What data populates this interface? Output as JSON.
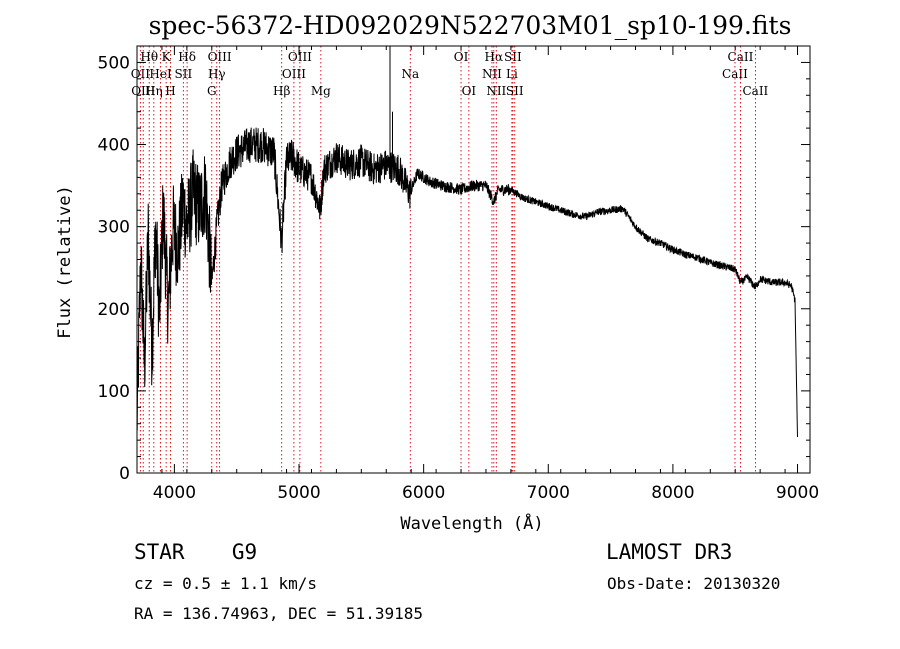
{
  "chart_data": {
    "type": "line",
    "title": "spec-56372-HD092029N522703M01_sp10-199.fits",
    "xlabel": "Wavelength (Å)",
    "ylabel": "Flux (relative)",
    "xlim": [
      3700,
      9100
    ],
    "ylim": [
      0,
      520
    ],
    "xticks": [
      4000,
      5000,
      6000,
      7000,
      8000,
      9000
    ],
    "yticks": [
      0,
      100,
      200,
      300,
      400,
      500
    ],
    "spectrum_anchors": [
      [
        3700,
        60
      ],
      [
        3730,
        260
      ],
      [
        3760,
        130
      ],
      [
        3790,
        290
      ],
      [
        3820,
        150
      ],
      [
        3850,
        300
      ],
      [
        3880,
        190
      ],
      [
        3910,
        320
      ],
      [
        3950,
        200
      ],
      [
        3990,
        300
      ],
      [
        4030,
        270
      ],
      [
        4070,
        330
      ],
      [
        4100,
        300
      ],
      [
        4150,
        340
      ],
      [
        4200,
        320
      ],
      [
        4250,
        345
      ],
      [
        4300,
        230
      ],
      [
        4340,
        300
      ],
      [
        4380,
        350
      ],
      [
        4450,
        380
      ],
      [
        4500,
        390
      ],
      [
        4600,
        400
      ],
      [
        4700,
        400
      ],
      [
        4800,
        390
      ],
      [
        4860,
        280
      ],
      [
        4900,
        380
      ],
      [
        4950,
        385
      ],
      [
        5000,
        370
      ],
      [
        5100,
        360
      ],
      [
        5170,
        320
      ],
      [
        5200,
        370
      ],
      [
        5300,
        385
      ],
      [
        5400,
        375
      ],
      [
        5500,
        380
      ],
      [
        5600,
        370
      ],
      [
        5700,
        375
      ],
      [
        5800,
        370
      ],
      [
        5890,
        340
      ],
      [
        5950,
        365
      ],
      [
        6050,
        355
      ],
      [
        6150,
        350
      ],
      [
        6300,
        345
      ],
      [
        6400,
        350
      ],
      [
        6500,
        350
      ],
      [
        6563,
        330
      ],
      [
        6600,
        345
      ],
      [
        6700,
        345
      ],
      [
        6800,
        335
      ],
      [
        6900,
        330
      ],
      [
        7000,
        325
      ],
      [
        7100,
        320
      ],
      [
        7200,
        315
      ],
      [
        7300,
        312
      ],
      [
        7400,
        318
      ],
      [
        7500,
        320
      ],
      [
        7600,
        322
      ],
      [
        7700,
        300
      ],
      [
        7800,
        285
      ],
      [
        7900,
        280
      ],
      [
        8000,
        272
      ],
      [
        8100,
        266
      ],
      [
        8200,
        262
      ],
      [
        8300,
        256
      ],
      [
        8400,
        252
      ],
      [
        8500,
        248
      ],
      [
        8542,
        232
      ],
      [
        8600,
        238
      ],
      [
        8662,
        226
      ],
      [
        8700,
        236
      ],
      [
        8800,
        232
      ],
      [
        8900,
        232
      ],
      [
        8950,
        228
      ],
      [
        8980,
        210
      ],
      [
        9000,
        40
      ]
    ],
    "spikes": [
      {
        "x": 5730,
        "y": 520
      },
      {
        "x": 5750,
        "y": 440
      }
    ],
    "lines": [
      {
        "x": 3727,
        "label": "OII",
        "row": 1
      },
      {
        "x": 3750,
        "label": "OIII",
        "row": 2
      },
      {
        "x": 3798,
        "label": "Hθ",
        "row": 0
      },
      {
        "x": 3835,
        "label": "Hη",
        "row": 2
      },
      {
        "x": 3889,
        "label": "HeI",
        "row": 1
      },
      {
        "x": 3934,
        "label": "K",
        "row": 0
      },
      {
        "x": 3969,
        "label": "H",
        "row": 2
      },
      {
        "x": 4072,
        "label": "SII",
        "row": 1
      },
      {
        "x": 4102,
        "label": "Hδ",
        "row": 0
      },
      {
        "x": 4300,
        "label": "G",
        "row": 2
      },
      {
        "x": 4340,
        "label": "Hγ",
        "row": 1
      },
      {
        "x": 4363,
        "label": "OIII",
        "row": 0
      },
      {
        "x": 4861,
        "label": "Hβ",
        "row": 2
      },
      {
        "x": 4959,
        "label": "OIII",
        "row": 1
      },
      {
        "x": 5007,
        "label": "OIII",
        "row": 0
      },
      {
        "x": 5175,
        "label": "Mg",
        "row": 2
      },
      {
        "x": 5893,
        "label": "Na",
        "row": 1
      },
      {
        "x": 6300,
        "label": "OI",
        "row": 0
      },
      {
        "x": 6363,
        "label": "OI",
        "row": 2
      },
      {
        "x": 6548,
        "label": "NII",
        "row": 1
      },
      {
        "x": 6563,
        "label": "Hα",
        "row": 0
      },
      {
        "x": 6583,
        "label": "NII",
        "row": 2
      },
      {
        "x": 6708,
        "label": "Li",
        "row": 1
      },
      {
        "x": 6716,
        "label": "SII",
        "row": 0
      },
      {
        "x": 6731,
        "label": "SII",
        "row": 2
      },
      {
        "x": 8498,
        "label": "CaII",
        "row": 1
      },
      {
        "x": 8542,
        "label": "CaII",
        "row": 0
      },
      {
        "x": 8662,
        "label": "CaII",
        "row": 2
      }
    ],
    "line_color": "#000000",
    "marker_color": "#cc0000"
  },
  "info": {
    "class": "STAR",
    "subclass": "G9",
    "survey": "LAMOST DR3",
    "cz": "cz = 0.5 ± 1.1 km/s",
    "obs_date": "Obs-Date: 20130320",
    "coords": "RA = 136.74963, DEC =  51.39185"
  }
}
